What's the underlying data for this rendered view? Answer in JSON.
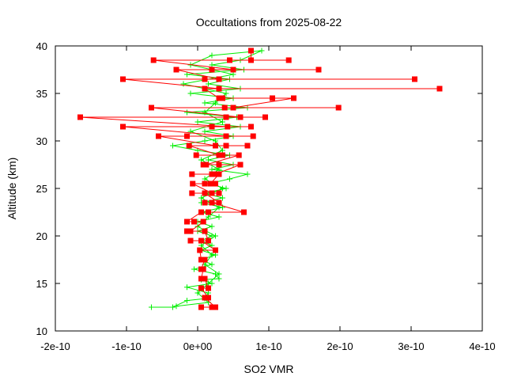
{
  "chart_data": {
    "type": "line",
    "title": "Occultations from 2025-08-22",
    "xlabel": "SO2 VMR",
    "ylabel": "Altitude (km)",
    "xlim": [
      -2e-10,
      4e-10
    ],
    "ylim": [
      10,
      40
    ],
    "x_ticks": [
      -2e-10,
      -1e-10,
      0,
      1e-10,
      2e-10,
      3e-10,
      4e-10
    ],
    "x_tick_labels": [
      "-2e-10",
      "-1e-10",
      "0e+00",
      "1e-10",
      "2e-10",
      "3e-10",
      "4e-10"
    ],
    "y_ticks": [
      10,
      15,
      20,
      25,
      30,
      35,
      40
    ],
    "y_tick_labels": [
      "10",
      "15",
      "20",
      "25",
      "30",
      "35",
      "40"
    ],
    "grid": false,
    "series": [
      {
        "color": "#ff0000",
        "marker": "square",
        "points": [
          [
            2e-11,
            12.5
          ],
          [
            5e-12,
            12.5
          ],
          [
            2.5e-11,
            12.5
          ],
          [
            1e-11,
            13.5
          ],
          [
            1.5e-11,
            13.5
          ],
          [
            5e-12,
            14.5
          ],
          [
            1.5e-11,
            14.5
          ],
          [
            1e-11,
            15.5
          ],
          [
            5e-12,
            15.5
          ],
          [
            8e-12,
            16.5
          ],
          [
            5e-12,
            16.5
          ],
          [
            1e-11,
            17.5
          ],
          [
            5e-12,
            17.5
          ],
          [
            3e-12,
            18.5
          ],
          [
            2.5e-11,
            18.5
          ],
          [
            5e-12,
            19.5
          ],
          [
            -1e-11,
            19.5
          ],
          [
            1.5e-11,
            19.5
          ],
          [
            1e-11,
            20.5
          ],
          [
            -1.5e-11,
            20.5
          ],
          [
            -1e-11,
            20.5
          ],
          [
            8e-12,
            21.5
          ],
          [
            -5e-12,
            21.5
          ],
          [
            -1.5e-11,
            21.5
          ],
          [
            5e-12,
            22.5
          ],
          [
            1.5e-11,
            22.5
          ],
          [
            6.5e-11,
            22.5
          ],
          [
            2e-11,
            23.5
          ],
          [
            1e-11,
            23.5
          ],
          [
            3e-11,
            23.5
          ],
          [
            1e-11,
            24.5
          ],
          [
            -8e-12,
            24.5
          ],
          [
            3e-11,
            24.5
          ],
          [
            2e-11,
            24.5
          ],
          [
            -7e-12,
            25.5
          ],
          [
            2.5e-11,
            25.5
          ],
          [
            1e-11,
            25.5
          ],
          [
            1.8e-11,
            25.5
          ],
          [
            3e-11,
            26.5
          ],
          [
            -8e-12,
            26.5
          ],
          [
            2e-11,
            26.5
          ],
          [
            2.5e-11,
            26.5
          ],
          [
            6e-11,
            27.5
          ],
          [
            3e-11,
            27.5
          ],
          [
            8e-12,
            27.5
          ],
          [
            1.2e-11,
            27.5
          ],
          [
            5.8e-11,
            28.5
          ],
          [
            3.5e-11,
            28.5
          ],
          [
            -2e-12,
            28.5
          ],
          [
            3e-11,
            28.5
          ],
          [
            -1.2e-11,
            29.5
          ],
          [
            7e-11,
            29.5
          ],
          [
            4e-11,
            29.5
          ],
          [
            2.5e-11,
            29.5
          ],
          [
            -5.5e-11,
            30.5
          ],
          [
            -1.5e-11,
            30.5
          ],
          [
            7.8e-11,
            30.5
          ],
          [
            4e-11,
            30.5
          ],
          [
            -1.05e-10,
            31.5
          ],
          [
            2e-11,
            31.5
          ],
          [
            7.5e-11,
            31.5
          ],
          [
            4.2e-11,
            31.5
          ],
          [
            -1.65e-10,
            32.5
          ],
          [
            9.5e-11,
            32.5
          ],
          [
            4e-11,
            32.5
          ],
          [
            6e-11,
            32.5
          ],
          [
            -6.5e-11,
            33.5
          ],
          [
            1.98e-10,
            33.5
          ],
          [
            3.8e-11,
            33.5
          ],
          [
            5e-11,
            33.5
          ],
          [
            1.35e-10,
            34.5
          ],
          [
            1.05e-10,
            34.5
          ],
          [
            3.5e-11,
            34.5
          ],
          [
            3e-11,
            34.5
          ],
          [
            1e-11,
            35.5
          ],
          [
            3.4e-10,
            35.5
          ],
          [
            3e-11,
            35.5
          ],
          [
            -1.05e-10,
            36.5
          ],
          [
            3.05e-10,
            36.5
          ],
          [
            1e-11,
            36.5
          ],
          [
            3e-11,
            36.5
          ],
          [
            -3e-11,
            37.5
          ],
          [
            1.7e-10,
            37.5
          ],
          [
            2e-11,
            37.5
          ],
          [
            5e-11,
            37.5
          ],
          [
            -6.2e-11,
            38.5
          ],
          [
            1.28e-10,
            38.5
          ],
          [
            4.5e-11,
            38.5
          ],
          [
            7.5e-11,
            38.5
          ],
          [
            7.5e-11,
            39.5
          ]
        ]
      },
      {
        "color": "#00ee00",
        "marker": "plus",
        "points": [
          [
            -6.5e-11,
            12.5
          ],
          [
            -3.5e-11,
            12.5
          ],
          [
            -1.5e-11,
            13.2
          ],
          [
            1e-11,
            13.4
          ],
          [
            1.5e-11,
            14.0
          ],
          [
            -1.5e-11,
            14.6
          ],
          [
            2e-11,
            15.0
          ],
          [
            5e-12,
            15.4
          ],
          [
            3e-11,
            15.5
          ],
          [
            2.5e-11,
            16.0
          ],
          [
            -5e-12,
            16.5
          ],
          [
            2e-11,
            17.0
          ],
          [
            5e-12,
            17.5
          ],
          [
            2.5e-11,
            18.0
          ],
          [
            5e-12,
            18.5
          ],
          [
            2e-11,
            19.0
          ],
          [
            5e-12,
            19.5
          ],
          [
            2e-11,
            20.0
          ],
          [
            0.0,
            20.5
          ],
          [
            2e-11,
            21.0
          ],
          [
            0.0,
            21.5
          ],
          [
            3e-11,
            22.0
          ],
          [
            5e-12,
            22.5
          ],
          [
            3.5e-11,
            23.0
          ],
          [
            5e-12,
            23.5
          ],
          [
            3.5e-11,
            24.0
          ],
          [
            1e-11,
            24.5
          ],
          [
            4e-11,
            25.0
          ],
          [
            1.5e-11,
            25.5
          ],
          [
            4.5e-11,
            26.0
          ],
          [
            7e-11,
            26.5
          ],
          [
            2e-11,
            27.0
          ],
          [
            5e-11,
            27.5
          ],
          [
            1.5e-11,
            28.0
          ],
          [
            4.5e-11,
            28.5
          ],
          [
            0.0,
            29.0
          ],
          [
            -3.5e-11,
            29.5
          ],
          [
            1e-11,
            30.0
          ],
          [
            5e-11,
            30.5
          ],
          [
            1e-11,
            31.0
          ],
          [
            6e-11,
            31.5
          ],
          [
            0.0,
            32.0
          ],
          [
            5.5e-11,
            32.5
          ],
          [
            -1.5e-11,
            33.0
          ],
          [
            7e-11,
            33.5
          ],
          [
            1e-11,
            34.0
          ],
          [
            5e-11,
            34.5
          ],
          [
            -1e-11,
            35.0
          ],
          [
            6e-11,
            35.5
          ],
          [
            1.5e-11,
            36.0
          ],
          [
            4.5e-11,
            36.5
          ],
          [
            -1.5e-11,
            37.0
          ],
          [
            6.5e-11,
            37.5
          ],
          [
            2e-11,
            38.0
          ],
          [
            6e-11,
            38.5
          ],
          [
            9e-11,
            39.5
          ],
          [
            2e-11,
            39.0
          ],
          [
            -1e-11,
            38.0
          ],
          [
            5e-11,
            37.0
          ],
          [
            -2e-11,
            36.0
          ],
          [
            4e-11,
            35.0
          ],
          [
            2.5e-11,
            34.0
          ],
          [
            1e-11,
            33.0
          ],
          [
            3.5e-11,
            32.0
          ],
          [
            -1e-11,
            31.0
          ],
          [
            2.5e-11,
            30.0
          ],
          [
            3.5e-11,
            29.0
          ],
          [
            5e-12,
            28.0
          ],
          [
            3e-11,
            27.0
          ],
          [
            1e-11,
            26.0
          ],
          [
            3.5e-11,
            25.0
          ],
          [
            5e-12,
            24.0
          ],
          [
            3e-11,
            23.0
          ],
          [
            1.5e-11,
            22.0
          ],
          [
            0.0,
            21.0
          ],
          [
            2.5e-11,
            20.0
          ],
          [
            5e-12,
            19.0
          ],
          [
            2e-11,
            18.0
          ],
          [
            1e-11,
            17.0
          ],
          [
            3e-11,
            16.0
          ],
          [
            1.5e-11,
            15.0
          ],
          [
            0.0,
            14.0
          ],
          [
            1.5e-11,
            13.0
          ],
          [
            -3e-11,
            12.6
          ]
        ]
      }
    ]
  }
}
